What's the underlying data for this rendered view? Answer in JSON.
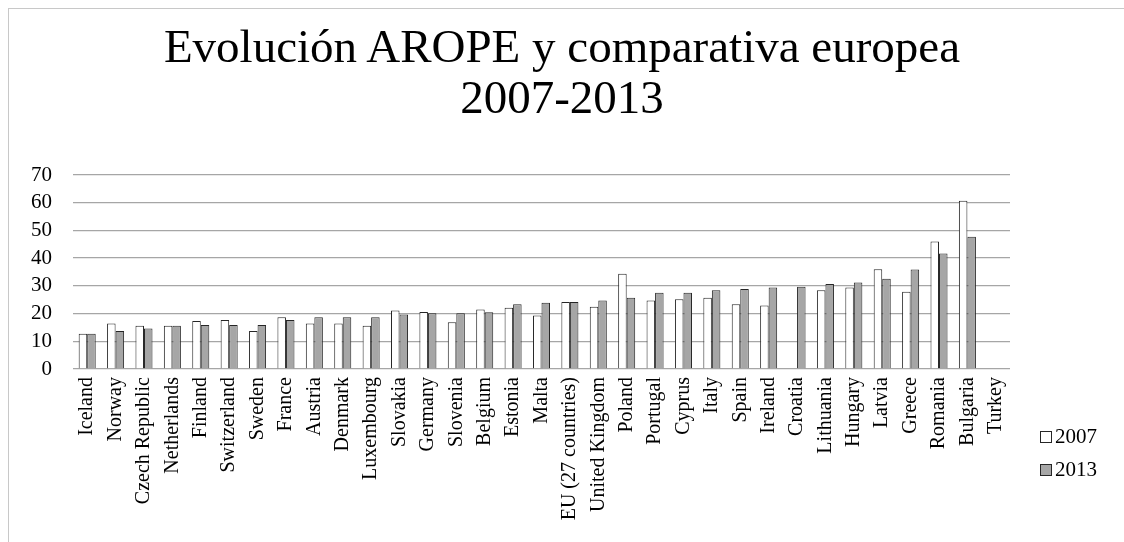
{
  "chart_data": {
    "type": "bar",
    "title": "Evolución AROPE y comparativa europea 2007-2013",
    "categories": [
      "Iceland",
      "Norway",
      "Czech Republic",
      "Netherlands",
      "Finland",
      "Switzerland",
      "Sweden",
      "France",
      "Austria",
      "Denmark",
      "Luxembourg",
      "Slovakia",
      "Germany",
      "Slovenia",
      "Belgium",
      "Estonia",
      "Malta",
      "EU (27 countries)",
      "United Kingdom",
      "Poland",
      "Portugal",
      "Cyprus",
      "Italy",
      "Spain",
      "Ireland",
      "Croatia",
      "Lithuania",
      "Hungary",
      "Latvia",
      "Greece",
      "Romania",
      "Bulgaria",
      "Turkey"
    ],
    "series": [
      {
        "name": "2007",
        "color": "#ffffff",
        "values": [
          12.7,
          16.4,
          15.6,
          15.6,
          17.3,
          17.7,
          13.7,
          18.7,
          16.4,
          16.4,
          15.6,
          21.1,
          20.6,
          16.9,
          21.5,
          22.1,
          19.3,
          24.2,
          22.5,
          34.4,
          24.7,
          25.2,
          25.7,
          23.4,
          22.9,
          null,
          28.4,
          29.4,
          36.0,
          27.9,
          46.0,
          60.7,
          null
        ]
      },
      {
        "name": "2013",
        "color": "#a6a6a6",
        "values": [
          12.7,
          13.7,
          14.6,
          15.6,
          15.9,
          15.9,
          15.9,
          17.7,
          18.7,
          18.7,
          18.7,
          19.7,
          20.1,
          20.1,
          20.5,
          23.4,
          23.9,
          24.2,
          24.7,
          25.7,
          27.5,
          27.5,
          28.4,
          28.9,
          29.4,
          29.7,
          30.7,
          31.2,
          32.6,
          35.9,
          41.7,
          47.7,
          null
        ]
      }
    ],
    "ylim": [
      0,
      70
    ],
    "yticks": [
      0,
      10,
      20,
      30,
      40,
      50,
      60,
      70
    ],
    "grid": "y",
    "legend": "right"
  }
}
